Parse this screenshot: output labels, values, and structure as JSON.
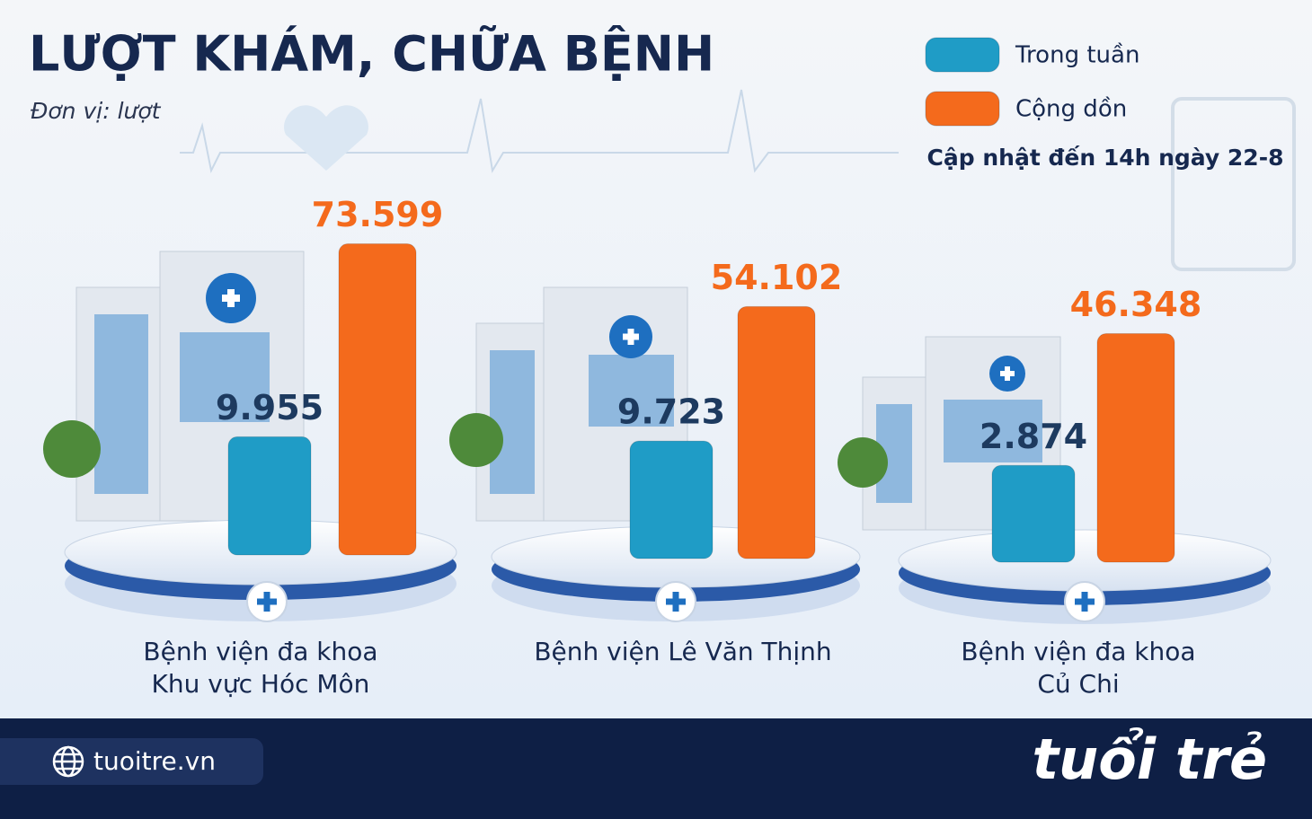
{
  "chart_data": {
    "type": "bar",
    "title": "LƯỢT KHÁM, CHỮA BỆNH",
    "subtitle": "Đơn vị: lượt",
    "note": "Cập nhật đến 14h ngày 22-8",
    "categories": [
      "Bệnh viện đa khoa\nKhu vực Hóc Môn",
      "Bệnh viện Lê Văn Thịnh",
      "Bệnh viện đa khoa\nCủ Chi"
    ],
    "series": [
      {
        "name": "Trong tuần",
        "color": "#1f9cc6",
        "values": [
          9955,
          9723,
          2874
        ],
        "value_labels": [
          "9.955",
          "9.723",
          "2.874"
        ]
      },
      {
        "name": "Cộng dồn",
        "color": "#f46a1c",
        "values": [
          73599,
          54102,
          46348
        ],
        "value_labels": [
          "73.599",
          "54.102",
          "46.348"
        ]
      }
    ]
  },
  "footer": {
    "website": "tuoitre.vn",
    "brand": "tuổi trẻ"
  }
}
